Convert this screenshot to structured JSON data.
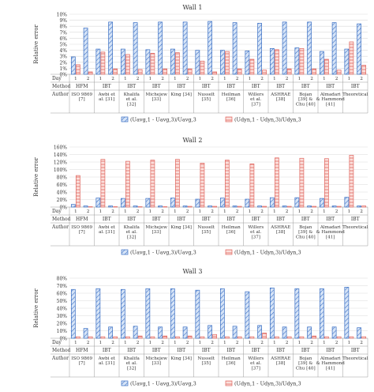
{
  "legend": {
    "series_a": "(Uavg,1 - Uavg,3)/Uavg,3",
    "series_b": "(Udyn,1 - Udyn,3)/Udyn,3"
  },
  "colors": {
    "series_a_stroke": "#3a6fc4",
    "series_a_fill": "#d6e4f7",
    "series_b_stroke": "#e0665f",
    "series_b_fill": "#fbe0dc",
    "grid": "#d9d9d9",
    "frame": "#999999"
  },
  "chart_data": [
    {
      "type": "bar",
      "title": "Wall 1",
      "ylabel": "Relative error",
      "ylim": [
        0,
        10
      ],
      "ytick_suffix": "%",
      "yticks": [
        0,
        1,
        2,
        3,
        4,
        5,
        6,
        7,
        8,
        9,
        10
      ],
      "legend_position": "bottom",
      "grid": true,
      "row_labels": [
        "Day",
        "Method",
        "Author"
      ],
      "groups": [
        {
          "author": "ISO 9869 [7]",
          "method": "HFM",
          "days": [
            "1",
            "2"
          ]
        },
        {
          "author": "Awbi et al. [31]",
          "method": "IBT",
          "days": [
            "1",
            "2"
          ]
        },
        {
          "author": "Khalifa et al. [32]",
          "method": "IBT",
          "days": [
            "1",
            "2"
          ]
        },
        {
          "author": "Michejew [33]",
          "method": "IBT",
          "days": [
            "1",
            "2"
          ]
        },
        {
          "author": "King [34]",
          "method": "IBT",
          "days": [
            "1",
            "2"
          ]
        },
        {
          "author": "Nusselt [35]",
          "method": "IBT",
          "days": [
            "1",
            "2"
          ]
        },
        {
          "author": "Heilman [36]",
          "method": "IBT",
          "days": [
            "1",
            "2"
          ]
        },
        {
          "author": "Willers et al. [37]",
          "method": "IBT",
          "days": [
            "1",
            "2"
          ]
        },
        {
          "author": "ASHRAE [38]",
          "method": "IBT",
          "days": [
            "1",
            "2"
          ]
        },
        {
          "author": "Bojan [39] & Chu [40]",
          "method": "IBT",
          "days": [
            "1",
            "2"
          ]
        },
        {
          "author": "Almadari & Hammond [41]",
          "method": "IBT",
          "days": [
            "1",
            "2"
          ]
        },
        {
          "author": "Theoretical",
          "method": "IBT",
          "days": [
            "1",
            "2"
          ]
        }
      ],
      "series": [
        {
          "name": "(Uavg,1 - Uavg,3)/Uavg,3",
          "values": [
            [
              2.9,
              7.7
            ],
            [
              4.2,
              8.7
            ],
            [
              4.2,
              8.6
            ],
            [
              4.1,
              8.7
            ],
            [
              4.2,
              8.7
            ],
            [
              4.0,
              8.8
            ],
            [
              4.0,
              8.6
            ],
            [
              3.9,
              8.5
            ],
            [
              4.3,
              8.7
            ],
            [
              4.4,
              8.7
            ],
            [
              3.8,
              8.6
            ],
            [
              4.2,
              8.4
            ]
          ]
        },
        {
          "name": "(Udyn,1 - Udyn,3)/Udyn,3",
          "values": [
            [
              1.6,
              0.4
            ],
            [
              3.7,
              0.9
            ],
            [
              3.3,
              0.8
            ],
            [
              3.5,
              0.9
            ],
            [
              3.6,
              0.9
            ],
            [
              2.2,
              0.4
            ],
            [
              3.8,
              0.9
            ],
            [
              2.5,
              0.7
            ],
            [
              4.1,
              0.9
            ],
            [
              4.3,
              0.9
            ],
            [
              2.5,
              0.7
            ],
            [
              5.4,
              1.5
            ]
          ]
        }
      ]
    },
    {
      "type": "bar",
      "title": "Wall 2",
      "ylabel": "Relative error",
      "ylim": [
        0,
        160
      ],
      "ytick_suffix": "%",
      "yticks": [
        0,
        20,
        40,
        60,
        80,
        100,
        120,
        140,
        160
      ],
      "legend_position": "bottom",
      "grid": true,
      "row_labels": [
        "Day",
        "Method",
        "Author"
      ],
      "groups": [
        {
          "author": "ISO 9869 [7]",
          "method": "HFM",
          "days": [
            "1",
            "2"
          ]
        },
        {
          "author": "Awbi et al. [31]",
          "method": "IBT",
          "days": [
            "1",
            "2"
          ]
        },
        {
          "author": "Khalifa et al. [32]",
          "method": "IBT",
          "days": [
            "1",
            "2"
          ]
        },
        {
          "author": "Michejew [33]",
          "method": "IBT",
          "days": [
            "1",
            "2"
          ]
        },
        {
          "author": "King [34]",
          "method": "IBT",
          "days": [
            "1",
            "2"
          ]
        },
        {
          "author": "Nusselt [35]",
          "method": "IBT",
          "days": [
            "1",
            "2"
          ]
        },
        {
          "author": "Heilman [36]",
          "method": "IBT",
          "days": [
            "1",
            "2"
          ]
        },
        {
          "author": "Willers et al. [37]",
          "method": "IBT",
          "days": [
            "1",
            "2"
          ]
        },
        {
          "author": "ASHRAE [38]",
          "method": "IBT",
          "days": [
            "1",
            "2"
          ]
        },
        {
          "author": "Bojan [39] & Chu [40]",
          "method": "IBT",
          "days": [
            "1",
            "2"
          ]
        },
        {
          "author": "Almadari & Hammond [41]",
          "method": "IBT",
          "days": [
            "1",
            "2"
          ]
        },
        {
          "author": "Theoretical",
          "method": "IBT",
          "days": [
            "1",
            "2"
          ]
        }
      ],
      "series": [
        {
          "name": "(Uavg,1 - Uavg,3)/Uavg,3",
          "values": [
            [
              7,
              3
            ],
            [
              24,
              3
            ],
            [
              23,
              3
            ],
            [
              23,
              3
            ],
            [
              24,
              3
            ],
            [
              21,
              3
            ],
            [
              24,
              3
            ],
            [
              21,
              3
            ],
            [
              25,
              3
            ],
            [
              25,
              3
            ],
            [
              23,
              3
            ],
            [
              26,
              3
            ]
          ]
        },
        {
          "name": "(Udyn,1 - Udyn,3)/Udyn,3",
          "values": [
            [
              84,
              1
            ],
            [
              127,
              1
            ],
            [
              122,
              1
            ],
            [
              125,
              1
            ],
            [
              127,
              2
            ],
            [
              117,
              2
            ],
            [
              125,
              2
            ],
            [
              115,
              2
            ],
            [
              131,
              2
            ],
            [
              130,
              2
            ],
            [
              129,
              2
            ],
            [
              138,
              3
            ]
          ]
        }
      ]
    },
    {
      "type": "bar",
      "title": "Wall 3",
      "ylabel": "Relative error",
      "ylim": [
        0,
        80
      ],
      "ytick_suffix": "%",
      "yticks": [
        0,
        10,
        20,
        30,
        40,
        50,
        60,
        70,
        80
      ],
      "legend_position": "bottom",
      "grid": true,
      "row_labels": [
        "Day",
        "Method",
        "Author"
      ],
      "groups": [
        {
          "author": "ISO 9869 [7]",
          "method": "HFM",
          "days": [
            "1",
            "2"
          ]
        },
        {
          "author": "Awbi et al. [31]",
          "method": "IBT",
          "days": [
            "1",
            "2"
          ]
        },
        {
          "author": "Khalifa et al. [32]",
          "method": "IBT",
          "days": [
            "1",
            "2"
          ]
        },
        {
          "author": "Michejew [33]",
          "method": "IBT",
          "days": [
            "1",
            "2"
          ]
        },
        {
          "author": "King [34]",
          "method": "IBT",
          "days": [
            "1",
            "2"
          ]
        },
        {
          "author": "Nusselt [35]",
          "method": "IBT",
          "days": [
            "1",
            "2"
          ]
        },
        {
          "author": "Heilman [36]",
          "method": "IBT",
          "days": [
            "1",
            "2"
          ]
        },
        {
          "author": "Willers et al. [37]",
          "method": "IBT",
          "days": [
            "1",
            "2"
          ]
        },
        {
          "author": "ASHRAE [38]",
          "method": "IBT",
          "days": [
            "1",
            "2"
          ]
        },
        {
          "author": "Bojan [39] & Chu [40]",
          "method": "IBT",
          "days": [
            "1",
            "2"
          ]
        },
        {
          "author": "Almadari & Hammond [41]",
          "method": "IBT",
          "days": [
            "1",
            "2"
          ]
        },
        {
          "author": "Theoretical",
          "method": "IBT",
          "days": [
            "1",
            "2"
          ]
        }
      ],
      "series": [
        {
          "name": "(Uavg,1 - Uavg,3)/Uavg,3",
          "values": [
            [
              65,
              13
            ],
            [
              66,
              15
            ],
            [
              65,
              16
            ],
            [
              66,
              15
            ],
            [
              66,
              15
            ],
            [
              64,
              17
            ],
            [
              66,
              16
            ],
            [
              62,
              17
            ],
            [
              67,
              15
            ],
            [
              66,
              15
            ],
            [
              66,
              15
            ],
            [
              68,
              14
            ]
          ]
        },
        {
          "name": "(Udyn,1 - Udyn,3)/Udyn,3",
          "values": [
            [
              2,
              2
            ],
            [
              2,
              2
            ],
            [
              2,
              3
            ],
            [
              2,
              3
            ],
            [
              2,
              3
            ],
            [
              2,
              5
            ],
            [
              2,
              2
            ],
            [
              2,
              7
            ],
            [
              2,
              2
            ],
            [
              2,
              3
            ],
            [
              2,
              2
            ],
            [
              2,
              2
            ]
          ]
        }
      ]
    }
  ]
}
